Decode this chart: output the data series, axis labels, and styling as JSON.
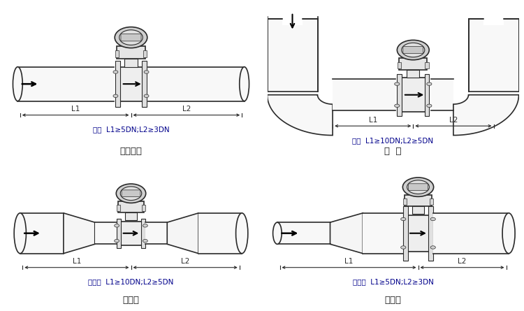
{
  "bg_color": "#ffffff",
  "line_color": "#2a2a2a",
  "text_color": "#1a1a1a",
  "dim_color": "#1a1a1a",
  "blue_text": "#00008B",
  "panels": {
    "straight": {
      "label": "水平直管",
      "constraint": "直管  L1≥5DN;L2≥3DN"
    },
    "bend": {
      "label": "弯  管",
      "constraint": "弯管  L1≥10DN;L2≥5DN"
    },
    "reduce": {
      "label": "缩径管",
      "constraint": "缩径管  L1≥10DN;L2≥5DN"
    },
    "expand": {
      "label": "扩径管",
      "constraint": "扩径管  L1≥5DN;L2≥3DN"
    }
  }
}
